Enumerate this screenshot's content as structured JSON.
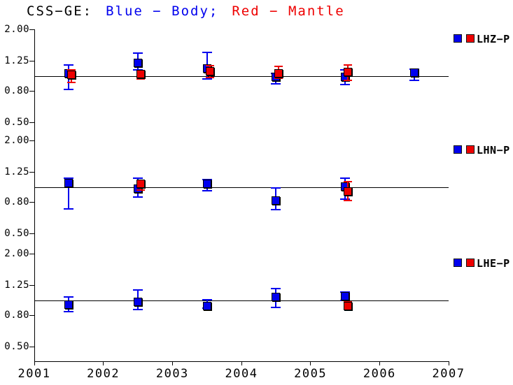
{
  "title": {
    "prefix": "CSS−GE:",
    "body_part": "Blue − Body;",
    "mantle_part": "Red − Mantle"
  },
  "colors": {
    "body": "#0000ee",
    "mantle": "#ee0000",
    "axis": "#000000",
    "background": "#ffffff"
  },
  "axes": {
    "x": {
      "min": 2001,
      "max": 2007,
      "ticks": [
        2001,
        2002,
        2003,
        2004,
        2005,
        2006,
        2007
      ],
      "tick_labels": [
        "2001",
        "2002",
        "2003",
        "2004",
        "2005",
        "2006",
        "2007"
      ]
    },
    "y": {
      "scale": "log",
      "tick_values": [
        2.0,
        1.25,
        0.8,
        0.5
      ],
      "tick_labels": [
        "2.00",
        "1.25",
        "0.80",
        "0.50"
      ]
    }
  },
  "chart_data": [
    {
      "type": "scatter",
      "name": "LHZ−P",
      "y_scale": "log",
      "ylim": [
        0.5,
        2.0
      ],
      "reference_line": 1.0,
      "legend_position": "right",
      "grid": false,
      "series": [
        {
          "name": "Body",
          "points": [
            {
              "x": 2001.5,
              "v": 1.04,
              "hi": 1.18,
              "lo": 0.82
            },
            {
              "x": 2002.5,
              "v": 1.21,
              "hi": 1.4,
              "lo": 1.09
            },
            {
              "x": 2003.5,
              "v": 1.11,
              "hi": 1.42,
              "lo": 0.95
            },
            {
              "x": 2004.5,
              "v": 0.98,
              "hi": 1.04,
              "lo": 0.89
            },
            {
              "x": 2005.5,
              "v": 0.98,
              "hi": 1.09,
              "lo": 0.88
            },
            {
              "x": 2006.5,
              "v": 1.05,
              "hi": 1.1,
              "lo": 0.93
            }
          ]
        },
        {
          "name": "Mantle",
          "points": [
            {
              "x": 2001.5,
              "v": 1.02,
              "hi": 1.09,
              "lo": 0.91
            },
            {
              "x": 2002.5,
              "v": 1.03,
              "hi": 1.07,
              "lo": 0.95
            },
            {
              "x": 2003.5,
              "v": 1.07,
              "hi": 1.16,
              "lo": 0.97
            },
            {
              "x": 2004.5,
              "v": 1.04,
              "hi": 1.15,
              "lo": 0.96
            },
            {
              "x": 2005.5,
              "v": 1.06,
              "hi": 1.18,
              "lo": 0.93
            }
          ]
        }
      ]
    },
    {
      "type": "scatter",
      "name": "LHN−P",
      "y_scale": "log",
      "ylim": [
        0.5,
        2.0
      ],
      "reference_line": 1.0,
      "legend_position": "right",
      "grid": false,
      "series": [
        {
          "name": "Body",
          "points": [
            {
              "x": 2001.5,
              "v": 1.06,
              "hi": 1.14,
              "lo": 0.72
            },
            {
              "x": 2002.5,
              "v": 0.97,
              "hi": 1.14,
              "lo": 0.86
            },
            {
              "x": 2003.5,
              "v": 1.05,
              "hi": 1.12,
              "lo": 0.94
            },
            {
              "x": 2004.5,
              "v": 0.82,
              "hi": 0.98,
              "lo": 0.71
            },
            {
              "x": 2005.5,
              "v": 1.01,
              "hi": 1.14,
              "lo": 0.83
            }
          ]
        },
        {
          "name": "Mantle",
          "points": [
            {
              "x": 2002.5,
              "v": 1.05,
              "hi": 1.1,
              "lo": 0.95
            },
            {
              "x": 2005.5,
              "v": 0.93,
              "hi": 1.08,
              "lo": 0.82
            }
          ]
        }
      ]
    },
    {
      "type": "scatter",
      "name": "LHE−P",
      "y_scale": "log",
      "ylim": [
        0.5,
        2.0
      ],
      "reference_line": 1.0,
      "legend_position": "right",
      "grid": false,
      "series": [
        {
          "name": "Body",
          "points": [
            {
              "x": 2001.5,
              "v": 0.93,
              "hi": 1.05,
              "lo": 0.84
            },
            {
              "x": 2002.5,
              "v": 0.97,
              "hi": 1.16,
              "lo": 0.87
            },
            {
              "x": 2003.5,
              "v": 0.92,
              "hi": 1.01,
              "lo": 0.89
            },
            {
              "x": 2004.5,
              "v": 1.05,
              "hi": 1.19,
              "lo": 0.9
            },
            {
              "x": 2005.5,
              "v": 1.06,
              "hi": 1.13,
              "lo": 0.99
            }
          ]
        },
        {
          "name": "Mantle",
          "points": [
            {
              "x": 2005.5,
              "v": 0.92,
              "hi": 0.97,
              "lo": 0.87
            }
          ]
        }
      ]
    }
  ]
}
